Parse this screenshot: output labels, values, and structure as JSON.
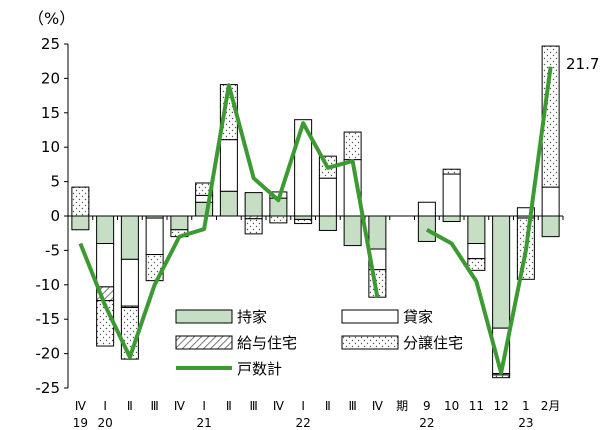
{
  "chart_data": {
    "type": "bar",
    "subtype": "stacked bar with line overlay",
    "unit_label": "（%）",
    "ylim": [
      -25,
      25
    ],
    "yticks": [
      25,
      20,
      15,
      10,
      5,
      0,
      -5,
      -10,
      -15,
      -20,
      -25
    ],
    "categories": [
      "Ⅳ",
      "Ⅰ",
      "Ⅱ",
      "Ⅲ",
      "Ⅳ",
      "Ⅰ",
      "Ⅱ",
      "Ⅲ",
      "Ⅳ",
      "Ⅰ",
      "Ⅱ",
      "Ⅲ",
      "Ⅳ",
      "期",
      "9",
      "10",
      "11",
      "12",
      "1",
      "2月"
    ],
    "year_labels": [
      {
        "index": 0,
        "text": "19"
      },
      {
        "index": 1,
        "text": "20"
      },
      {
        "index": 5,
        "text": "21"
      },
      {
        "index": 9,
        "text": "22"
      },
      {
        "index": 14,
        "text": "22"
      },
      {
        "index": 18,
        "text": "23"
      }
    ],
    "series": [
      {
        "name": "持家",
        "style": "green",
        "values": [
          -2.0,
          -4.0,
          -6.3,
          -0.3,
          -2.0,
          2.0,
          3.6,
          3.4,
          2.6,
          -0.5,
          -2.1,
          -4.3,
          -4.8,
          null,
          -3.7,
          -0.8,
          -4.0,
          -16.3,
          -0.3,
          -3.0
        ]
      },
      {
        "name": "貸家",
        "style": "white",
        "values": [
          0.0,
          -6.3,
          -6.8,
          -5.3,
          0.0,
          1.0,
          7.5,
          0.0,
          0.9,
          14.0,
          5.5,
          8.2,
          -3.0,
          null,
          2.0,
          6.1,
          -2.2,
          -6.6,
          1.2,
          4.2
        ]
      },
      {
        "name": "給与住宅",
        "style": "hatch",
        "values": [
          0.0,
          -2.0,
          -0.2,
          0.0,
          0.0,
          0.0,
          0.0,
          -0.4,
          0.0,
          0.0,
          0.0,
          0.0,
          0.0,
          null,
          0.0,
          0.0,
          0.0,
          -0.2,
          0.0,
          0.0
        ]
      },
      {
        "name": "分譲住宅",
        "style": "dots",
        "values": [
          4.2,
          -6.6,
          -7.5,
          -3.8,
          -1.0,
          1.8,
          8.0,
          -2.2,
          -1.0,
          -0.6,
          3.2,
          4.0,
          -4.0,
          null,
          0.0,
          0.7,
          -1.7,
          -0.4,
          -8.9,
          20.5
        ]
      }
    ],
    "line": {
      "name": "戸数計",
      "values": [
        -4.0,
        -13.0,
        -20.5,
        -10.0,
        -3.0,
        -1.9,
        19.0,
        5.5,
        2.3,
        13.5,
        7.0,
        8.0,
        -11.8,
        null,
        -2.0,
        -4.0,
        -9.5,
        -22.8,
        -5.0,
        21.7
      ]
    },
    "annotation": "21.7"
  },
  "legend": {
    "items": [
      {
        "label": "持家",
        "style": "green"
      },
      {
        "label": "貸家",
        "style": "white"
      },
      {
        "label": "給与住宅",
        "style": "hatch"
      },
      {
        "label": "分譲住宅",
        "style": "dots"
      },
      {
        "label": "戸数計",
        "style": "line"
      }
    ]
  },
  "colors": {
    "green_fill": "#c6dfc4",
    "line": "#3d9a33",
    "stroke": "#000000"
  }
}
